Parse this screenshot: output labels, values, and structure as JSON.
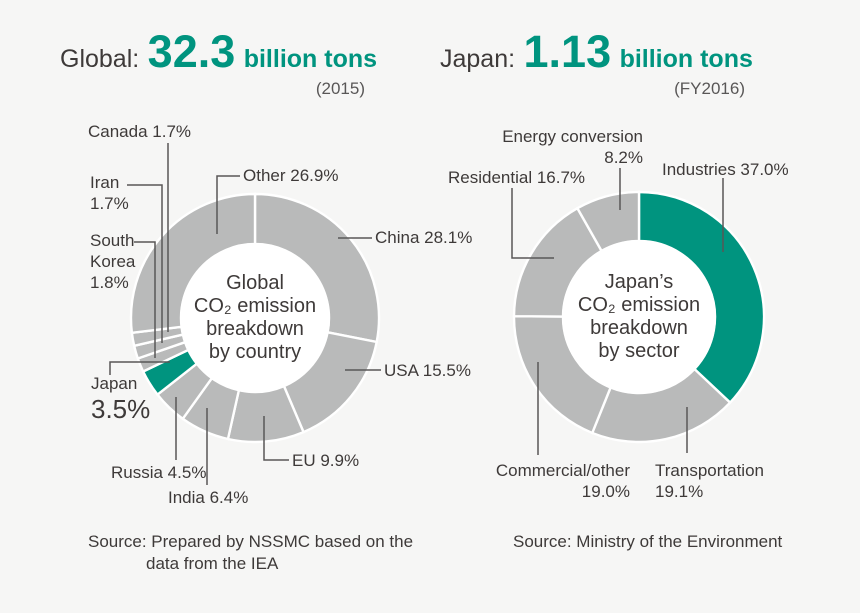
{
  "page": {
    "background": "#f6f6f5"
  },
  "colors": {
    "accent": "#00947f",
    "gray": "#b9baba",
    "divider": "#ffffff",
    "hole": "#ffffff",
    "leader": "#595757",
    "text_dark": "#3e3a39",
    "text_soft": "#595757"
  },
  "chart_data": [
    {
      "type": "pie",
      "variant": "donut",
      "direction": "clockwise",
      "start_angle_deg": 0,
      "unit": "%",
      "title": {
        "prefix": "Global:",
        "value": "32.3",
        "suffix": "billion tons",
        "note": "(2015)"
      },
      "center_label": [
        "Global",
        "CO₂ emission",
        "breakdown",
        "by country"
      ],
      "segments": [
        {
          "id": "china",
          "name": "China",
          "value": 28.1,
          "color": "gray",
          "label_lines": [
            "China 28.1%"
          ]
        },
        {
          "id": "usa",
          "name": "USA",
          "value": 15.5,
          "color": "gray",
          "label_lines": [
            "USA 15.5%"
          ]
        },
        {
          "id": "eu",
          "name": "EU",
          "value": 9.9,
          "color": "gray",
          "label_lines": [
            "EU 9.9%"
          ]
        },
        {
          "id": "india",
          "name": "India",
          "value": 6.4,
          "color": "gray",
          "label_lines": [
            "India 6.4%"
          ]
        },
        {
          "id": "russia",
          "name": "Russia",
          "value": 4.5,
          "color": "gray",
          "label_lines": [
            "Russia 4.5%"
          ]
        },
        {
          "id": "japan",
          "name": "Japan",
          "value": 3.5,
          "color": "accent",
          "label_lines": [
            "Japan",
            "3.5%"
          ]
        },
        {
          "id": "south-korea",
          "name": "South Korea",
          "value": 1.8,
          "color": "gray",
          "label_lines": [
            "South",
            "Korea",
            "1.8%"
          ]
        },
        {
          "id": "iran",
          "name": "Iran",
          "value": 1.7,
          "color": "gray",
          "label_lines": [
            "Iran",
            "1.7%"
          ]
        },
        {
          "id": "canada",
          "name": "Canada",
          "value": 1.7,
          "color": "gray",
          "label_lines": [
            "Canada 1.7%"
          ]
        },
        {
          "id": "other",
          "name": "Other",
          "value": 26.9,
          "color": "gray",
          "label_lines": [
            "Other 26.9%"
          ]
        }
      ],
      "source": [
        "Source: Prepared by NSSMC based on the",
        "data from the IEA"
      ]
    },
    {
      "type": "pie",
      "variant": "donut",
      "direction": "clockwise",
      "start_angle_deg": 0,
      "unit": "%",
      "title": {
        "prefix": "Japan:",
        "value": "1.13",
        "suffix": "billion tons",
        "note": "(FY2016)"
      },
      "center_label": [
        "Japan’s",
        "CO₂ emission",
        "breakdown",
        "by sector"
      ],
      "segments": [
        {
          "id": "industries",
          "name": "Industries",
          "value": 37.0,
          "color": "accent",
          "label_lines": [
            "Industries 37.0%"
          ]
        },
        {
          "id": "transportation",
          "name": "Transportation",
          "value": 19.1,
          "color": "gray",
          "label_lines": [
            "Transportation",
            "19.1%"
          ]
        },
        {
          "id": "commercial-other",
          "name": "Commercial/other",
          "value": 19.0,
          "color": "gray",
          "label_lines": [
            "Commercial/other",
            "19.0%"
          ]
        },
        {
          "id": "residential",
          "name": "Residential",
          "value": 16.7,
          "color": "gray",
          "label_lines": [
            "Residential 16.7%"
          ]
        },
        {
          "id": "energy-conversion",
          "name": "Energy conversion",
          "value": 8.2,
          "color": "gray",
          "label_lines": [
            "Energy conversion",
            "8.2%"
          ]
        }
      ],
      "source": [
        "Source: Ministry of the Environment"
      ]
    }
  ]
}
